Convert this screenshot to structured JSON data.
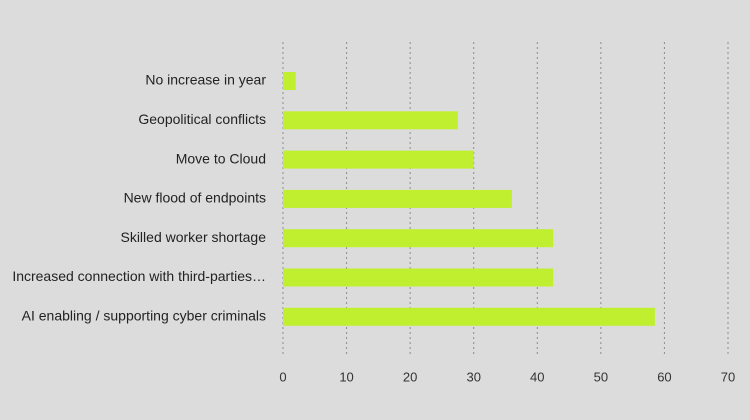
{
  "chart_data": {
    "type": "bar",
    "orientation": "horizontal",
    "title": "",
    "xlabel": "",
    "ylabel": "",
    "categories": [
      "No increase in year",
      "Geopolitical conflicts",
      "Move to Cloud",
      "New flood of endpoints",
      "Skilled worker shortage",
      "Increased connection with third-parties…",
      "AI enabling / supporting cyber criminals"
    ],
    "values": [
      2,
      27.5,
      30,
      36,
      42.5,
      42.5,
      58.5
    ],
    "xlim": [
      0,
      70
    ],
    "ticks": [
      0,
      10,
      20,
      30,
      40,
      50,
      60,
      70
    ],
    "grid": true,
    "bar_color": "#c0ef2f",
    "grid_color": "#8c8c8c",
    "background": "#dcdcdc"
  }
}
